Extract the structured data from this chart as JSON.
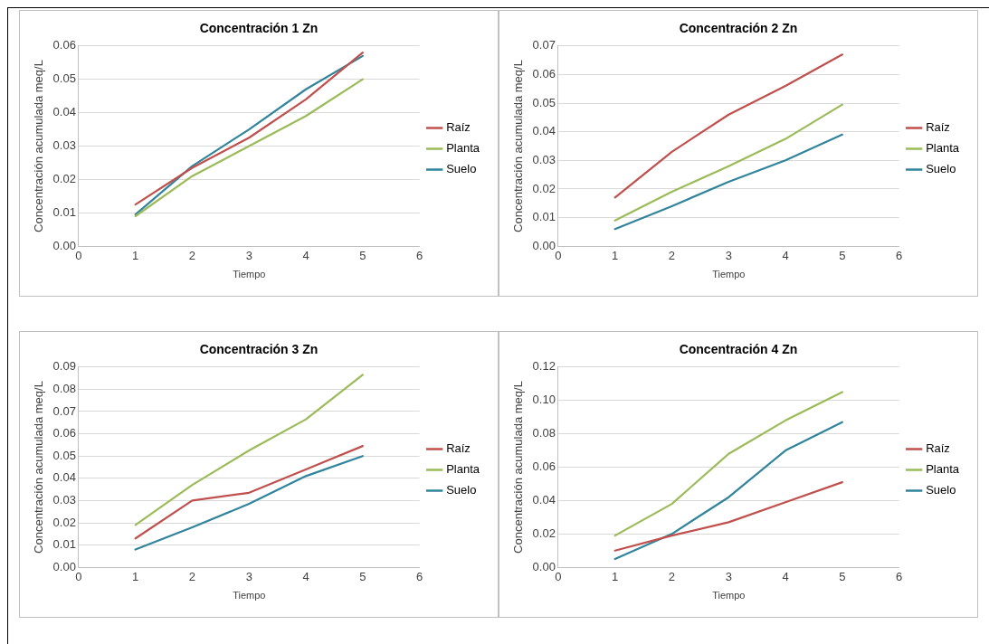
{
  "chart_data": [
    {
      "type": "line",
      "title": "Concentración 1 Zn",
      "xlabel": "Tiempo",
      "ylabel": "Concentración acumulada meq/L",
      "x": [
        1,
        2,
        3,
        4,
        5
      ],
      "xlim": [
        0,
        6
      ],
      "xticks": [
        0,
        1,
        2,
        3,
        4,
        5,
        6
      ],
      "ylim": [
        0,
        0.06
      ],
      "yticks": [
        {
          "value": 0,
          "label": "0.00"
        },
        {
          "value": 0.01,
          "label": "0.01"
        },
        {
          "value": 0.02,
          "label": "0.02"
        },
        {
          "value": 0.03,
          "label": "0.03"
        },
        {
          "value": 0.04,
          "label": "0.04"
        },
        {
          "value": 0.05,
          "label": "0.05"
        },
        {
          "value": 0.06,
          "label": "0.06"
        }
      ],
      "grid": "y",
      "legend": "right",
      "marker": "none",
      "line_style": "solid",
      "series": [
        {
          "name": "Raíz",
          "color": "#c0504d",
          "values": [
            0.0125,
            0.0235,
            0.0325,
            0.044,
            0.058
          ]
        },
        {
          "name": "Planta",
          "color": "#9bbb59",
          "values": [
            0.009,
            0.021,
            0.03,
            0.039,
            0.05
          ]
        },
        {
          "name": "Suelo",
          "color": "#31849b",
          "values": [
            0.0095,
            0.024,
            0.035,
            0.047,
            0.057
          ]
        }
      ]
    },
    {
      "type": "line",
      "title": "Concentración 2 Zn",
      "xlabel": "Tiempo",
      "ylabel": "Concentración acumulada meq/L",
      "x": [
        1,
        2,
        3,
        4,
        5
      ],
      "xlim": [
        0,
        6
      ],
      "xticks": [
        0,
        1,
        2,
        3,
        4,
        5,
        6
      ],
      "ylim": [
        0,
        0.07
      ],
      "yticks": [
        {
          "value": 0,
          "label": "0.00"
        },
        {
          "value": 0.01,
          "label": "0.01"
        },
        {
          "value": 0.02,
          "label": "0.02"
        },
        {
          "value": 0.03,
          "label": "0.03"
        },
        {
          "value": 0.04,
          "label": "0.04"
        },
        {
          "value": 0.05,
          "label": "0.05"
        },
        {
          "value": 0.06,
          "label": "0.06"
        },
        {
          "value": 0.07,
          "label": "0.07"
        }
      ],
      "grid": "y",
      "legend": "right",
      "marker": "none",
      "line_style": "solid",
      "series": [
        {
          "name": "Raíz",
          "color": "#c0504d",
          "values": [
            0.017,
            0.033,
            0.046,
            0.056,
            0.067
          ]
        },
        {
          "name": "Planta",
          "color": "#9bbb59",
          "values": [
            0.009,
            0.019,
            0.028,
            0.0375,
            0.0495
          ]
        },
        {
          "name": "Suelo",
          "color": "#31849b",
          "values": [
            0.006,
            0.014,
            0.0225,
            0.03,
            0.039
          ]
        }
      ]
    },
    {
      "type": "line",
      "title": "Concentración 3 Zn",
      "xlabel": "Tiempo",
      "ylabel": "Concentración acumulada meq/L",
      "x": [
        1,
        2,
        3,
        4,
        5
      ],
      "xlim": [
        0,
        6
      ],
      "xticks": [
        0,
        1,
        2,
        3,
        4,
        5,
        6
      ],
      "ylim": [
        0,
        0.09
      ],
      "yticks": [
        {
          "value": 0,
          "label": "0.00"
        },
        {
          "value": 0.01,
          "label": "0.01"
        },
        {
          "value": 0.02,
          "label": "0.02"
        },
        {
          "value": 0.03,
          "label": "0.03"
        },
        {
          "value": 0.04,
          "label": "0.04"
        },
        {
          "value": 0.05,
          "label": "0.05"
        },
        {
          "value": 0.06,
          "label": "0.06"
        },
        {
          "value": 0.07,
          "label": "0.07"
        },
        {
          "value": 0.08,
          "label": "0.08"
        },
        {
          "value": 0.09,
          "label": "0.09"
        }
      ],
      "grid": "y",
      "legend": "right",
      "marker": "none",
      "line_style": "solid",
      "series": [
        {
          "name": "Raíz",
          "color": "#c0504d",
          "values": [
            0.013,
            0.03,
            0.0335,
            0.044,
            0.0545
          ]
        },
        {
          "name": "Planta",
          "color": "#9bbb59",
          "values": [
            0.019,
            0.037,
            0.0525,
            0.0665,
            0.0865
          ]
        },
        {
          "name": "Suelo",
          "color": "#31849b",
          "values": [
            0.008,
            0.018,
            0.0285,
            0.041,
            0.05
          ]
        }
      ]
    },
    {
      "type": "line",
      "title": "Concentración 4 Zn",
      "xlabel": "Tiempo",
      "ylabel": "Concentración acumulada meq/L",
      "x": [
        1,
        2,
        3,
        4,
        5
      ],
      "xlim": [
        0,
        6
      ],
      "xticks": [
        0,
        1,
        2,
        3,
        4,
        5,
        6
      ],
      "ylim": [
        0,
        0.12
      ],
      "yticks": [
        {
          "value": 0,
          "label": "0.00"
        },
        {
          "value": 0.02,
          "label": "0.02"
        },
        {
          "value": 0.04,
          "label": "0.04"
        },
        {
          "value": 0.06,
          "label": "0.06"
        },
        {
          "value": 0.08,
          "label": "0.08"
        },
        {
          "value": 0.1,
          "label": "0.10"
        },
        {
          "value": 0.12,
          "label": "0.12"
        }
      ],
      "grid": "y",
      "legend": "right",
      "marker": "none",
      "line_style": "solid",
      "series": [
        {
          "name": "Raíz",
          "color": "#c0504d",
          "values": [
            0.01,
            0.019,
            0.027,
            0.039,
            0.051
          ]
        },
        {
          "name": "Planta",
          "color": "#9bbb59",
          "values": [
            0.019,
            0.038,
            0.068,
            0.088,
            0.105
          ]
        },
        {
          "name": "Suelo",
          "color": "#31849b",
          "values": [
            0.005,
            0.02,
            0.042,
            0.07,
            0.087
          ]
        }
      ]
    }
  ]
}
